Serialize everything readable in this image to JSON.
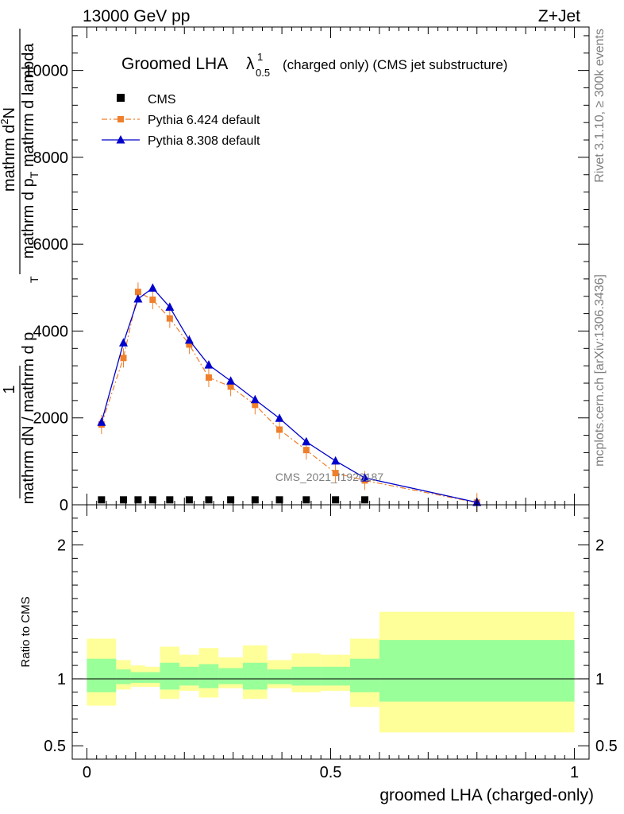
{
  "header": {
    "left": "13000 GeV pp",
    "right": "Z+Jet"
  },
  "side_text": {
    "rivet": "Rivet 3.1.10, ≥ 300k events",
    "mcplots": "mcplots.cern.ch [arXiv:1306.3436]"
  },
  "watermark": "CMS_2021_I1920187",
  "chart_data": [
    {
      "type": "line",
      "title": {
        "main": "Groomed LHA",
        "lambda_symbol": "λ",
        "sup": "1",
        "sub": "0.5",
        "suffix": "(charged only) (CMS jet substructure)"
      },
      "ylabel_parts": {
        "frac1_num": "1",
        "frac1_den": "mathrm dN / mathrm d p",
        "frac2_num": "mathrm d",
        "frac2_num_sup": "2",
        "frac2_num_tail": "N",
        "frac2_den": "mathrm d p",
        "frac2_den_sub": "T",
        "frac2_den_tail": "mathrm d lambda",
        "sub_T": "T"
      },
      "xlim": [
        -0.03,
        1.03
      ],
      "ylim": [
        0,
        11000
      ],
      "y_ticks": [
        0,
        2000,
        4000,
        6000,
        8000,
        10000
      ],
      "y_tick_labels": [
        "0",
        "2000",
        "4000",
        "6000",
        "8000",
        "10000"
      ],
      "legend": {
        "position": "top-left",
        "entries": [
          {
            "name": "CMS",
            "marker": "square",
            "color": "#000000"
          },
          {
            "name": "Pythia 6.424 default",
            "marker": "square",
            "color": "#ee7f2c",
            "style": "dashdot"
          },
          {
            "name": "Pythia 8.308 default",
            "marker": "triangle",
            "color": "#0000cc",
            "style": "solid"
          }
        ]
      },
      "x_bins": [
        0.03,
        0.075,
        0.105,
        0.135,
        0.17,
        0.21,
        0.25,
        0.295,
        0.345,
        0.395,
        0.45,
        0.51,
        0.57,
        0.8
      ],
      "series": [
        {
          "name": "CMS",
          "values": [
            40,
            40,
            40,
            40,
            40,
            40,
            40,
            40,
            40,
            40,
            40,
            40,
            40,
            null
          ]
        },
        {
          "name": "Pythia 6.424 default",
          "values": [
            1850,
            3380,
            4900,
            4720,
            4290,
            3690,
            2930,
            2720,
            2300,
            1730,
            1260,
            730,
            560,
            50
          ]
        },
        {
          "name": "Pythia 8.308 default",
          "values": [
            1900,
            3730,
            4740,
            4990,
            4550,
            3790,
            3220,
            2850,
            2420,
            1990,
            1450,
            1010,
            620,
            55
          ]
        }
      ]
    },
    {
      "type": "area",
      "ylabel": "Ratio to CMS",
      "xlabel": "groomed LHA (charged-only)",
      "xlim": [
        -0.03,
        1.03
      ],
      "ylim": [
        0.4,
        2.3
      ],
      "y_ticks": [
        0.5,
        1,
        2
      ],
      "y_tick_labels": [
        "0.5",
        "1",
        "2"
      ],
      "x_ticks": [
        0,
        0.5,
        1
      ],
      "x_tick_labels": [
        "0",
        "0.5",
        "1"
      ],
      "reference_line": 1,
      "band_edges": [
        0,
        0.06,
        0.09,
        0.12,
        0.15,
        0.19,
        0.23,
        0.27,
        0.32,
        0.37,
        0.42,
        0.48,
        0.54,
        0.6,
        1.0
      ],
      "yellow_band": {
        "lower": [
          0.8,
          0.92,
          0.94,
          0.94,
          0.85,
          0.91,
          0.86,
          0.93,
          0.85,
          0.93,
          0.9,
          0.91,
          0.79,
          0.6
        ],
        "upper": [
          1.3,
          1.14,
          1.1,
          1.09,
          1.24,
          1.18,
          1.23,
          1.16,
          1.25,
          1.14,
          1.19,
          1.18,
          1.3,
          1.5
        ]
      },
      "green_band": {
        "lower": [
          0.9,
          0.96,
          0.97,
          0.97,
          0.92,
          0.95,
          0.93,
          0.96,
          0.92,
          0.96,
          0.95,
          0.95,
          0.9,
          0.83
        ],
        "upper": [
          1.15,
          1.07,
          1.05,
          1.05,
          1.12,
          1.09,
          1.11,
          1.08,
          1.12,
          1.07,
          1.09,
          1.09,
          1.15,
          1.29
        ]
      }
    }
  ]
}
